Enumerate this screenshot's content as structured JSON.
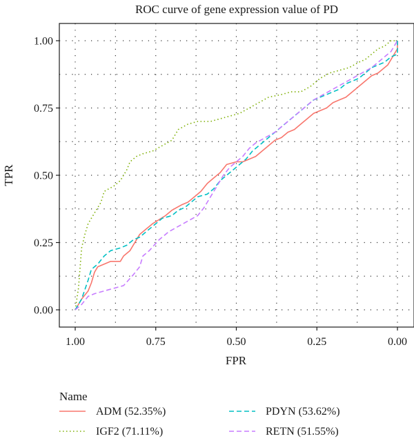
{
  "chart_data": {
    "type": "line",
    "title": "ROC curve of gene expression value of PD",
    "xlabel": "FPR",
    "ylabel": "TPR",
    "xlim": [
      1.0,
      0.0
    ],
    "ylim": [
      0.0,
      1.0
    ],
    "x_reversed": true,
    "xticks": [
      1.0,
      0.75,
      0.5,
      0.25,
      0.0
    ],
    "xtick_labels": [
      "1.00",
      "0.75",
      "0.50",
      "0.25",
      "0.00"
    ],
    "yticks": [
      0.0,
      0.25,
      0.5,
      0.75,
      1.0
    ],
    "ytick_labels": [
      "0.00",
      "0.25",
      "0.50",
      "0.75",
      "1.00"
    ],
    "grid": true,
    "legend": {
      "title": "Name",
      "position": "bottom"
    },
    "series": [
      {
        "name": "ADM (52.35%)",
        "color": "#f8766d",
        "dash": "solid",
        "points": [
          [
            1.0,
            0.0
          ],
          [
            0.99,
            0.02
          ],
          [
            0.98,
            0.04
          ],
          [
            0.96,
            0.07
          ],
          [
            0.95,
            0.1
          ],
          [
            0.94,
            0.14
          ],
          [
            0.93,
            0.16
          ],
          [
            0.91,
            0.17
          ],
          [
            0.89,
            0.18
          ],
          [
            0.86,
            0.18
          ],
          [
            0.85,
            0.2
          ],
          [
            0.83,
            0.22
          ],
          [
            0.8,
            0.28
          ],
          [
            0.78,
            0.3
          ],
          [
            0.76,
            0.32
          ],
          [
            0.72,
            0.35
          ],
          [
            0.7,
            0.37
          ],
          [
            0.67,
            0.39
          ],
          [
            0.65,
            0.4
          ],
          [
            0.63,
            0.42
          ],
          [
            0.61,
            0.44
          ],
          [
            0.59,
            0.47
          ],
          [
            0.57,
            0.49
          ],
          [
            0.55,
            0.51
          ],
          [
            0.53,
            0.54
          ],
          [
            0.5,
            0.55
          ],
          [
            0.48,
            0.55
          ],
          [
            0.46,
            0.56
          ],
          [
            0.44,
            0.57
          ],
          [
            0.42,
            0.59
          ],
          [
            0.4,
            0.61
          ],
          [
            0.38,
            0.63
          ],
          [
            0.36,
            0.64
          ],
          [
            0.34,
            0.66
          ],
          [
            0.32,
            0.67
          ],
          [
            0.3,
            0.69
          ],
          [
            0.28,
            0.71
          ],
          [
            0.26,
            0.73
          ],
          [
            0.24,
            0.74
          ],
          [
            0.22,
            0.75
          ],
          [
            0.2,
            0.77
          ],
          [
            0.18,
            0.78
          ],
          [
            0.16,
            0.79
          ],
          [
            0.14,
            0.81
          ],
          [
            0.12,
            0.83
          ],
          [
            0.1,
            0.85
          ],
          [
            0.08,
            0.87
          ],
          [
            0.06,
            0.88
          ],
          [
            0.04,
            0.9
          ],
          [
            0.03,
            0.91
          ],
          [
            0.02,
            0.93
          ],
          [
            0.01,
            0.95
          ],
          [
            0.0,
            0.97
          ],
          [
            0.0,
            1.0
          ]
        ]
      },
      {
        "name": "IGF2 (71.11%)",
        "color": "#7cae00",
        "dash": "dotted",
        "points": [
          [
            1.0,
            0.0
          ],
          [
            0.99,
            0.08
          ],
          [
            0.98,
            0.23
          ],
          [
            0.97,
            0.28
          ],
          [
            0.96,
            0.32
          ],
          [
            0.94,
            0.36
          ],
          [
            0.92,
            0.4
          ],
          [
            0.91,
            0.44
          ],
          [
            0.88,
            0.46
          ],
          [
            0.86,
            0.48
          ],
          [
            0.84,
            0.52
          ],
          [
            0.83,
            0.55
          ],
          [
            0.81,
            0.57
          ],
          [
            0.79,
            0.58
          ],
          [
            0.76,
            0.59
          ],
          [
            0.73,
            0.61
          ],
          [
            0.7,
            0.63
          ],
          [
            0.68,
            0.67
          ],
          [
            0.65,
            0.69
          ],
          [
            0.62,
            0.7
          ],
          [
            0.58,
            0.7
          ],
          [
            0.55,
            0.71
          ],
          [
            0.52,
            0.72
          ],
          [
            0.49,
            0.73
          ],
          [
            0.46,
            0.75
          ],
          [
            0.43,
            0.77
          ],
          [
            0.4,
            0.79
          ],
          [
            0.36,
            0.8
          ],
          [
            0.33,
            0.81
          ],
          [
            0.3,
            0.81
          ],
          [
            0.27,
            0.83
          ],
          [
            0.24,
            0.86
          ],
          [
            0.21,
            0.88
          ],
          [
            0.18,
            0.89
          ],
          [
            0.15,
            0.9
          ],
          [
            0.12,
            0.92
          ],
          [
            0.1,
            0.93
          ],
          [
            0.08,
            0.95
          ],
          [
            0.06,
            0.97
          ],
          [
            0.04,
            0.98
          ],
          [
            0.02,
            1.0
          ],
          [
            0.0,
            1.0
          ]
        ]
      },
      {
        "name": "PDYN (53.62%)",
        "color": "#00bfc4",
        "dash": "dashed",
        "points": [
          [
            1.0,
            0.0
          ],
          [
            0.98,
            0.04
          ],
          [
            0.96,
            0.11
          ],
          [
            0.95,
            0.15
          ],
          [
            0.93,
            0.17
          ],
          [
            0.91,
            0.2
          ],
          [
            0.89,
            0.22
          ],
          [
            0.86,
            0.23
          ],
          [
            0.84,
            0.24
          ],
          [
            0.82,
            0.26
          ],
          [
            0.8,
            0.27
          ],
          [
            0.78,
            0.29
          ],
          [
            0.76,
            0.31
          ],
          [
            0.73,
            0.34
          ],
          [
            0.7,
            0.35
          ],
          [
            0.68,
            0.37
          ],
          [
            0.66,
            0.38
          ],
          [
            0.64,
            0.4
          ],
          [
            0.62,
            0.42
          ],
          [
            0.59,
            0.43
          ],
          [
            0.57,
            0.45
          ],
          [
            0.55,
            0.48
          ],
          [
            0.53,
            0.5
          ],
          [
            0.51,
            0.52
          ],
          [
            0.49,
            0.54
          ],
          [
            0.47,
            0.56
          ],
          [
            0.45,
            0.59
          ],
          [
            0.42,
            0.62
          ],
          [
            0.4,
            0.64
          ],
          [
            0.38,
            0.66
          ],
          [
            0.36,
            0.68
          ],
          [
            0.34,
            0.7
          ],
          [
            0.32,
            0.72
          ],
          [
            0.3,
            0.74
          ],
          [
            0.28,
            0.76
          ],
          [
            0.26,
            0.78
          ],
          [
            0.24,
            0.79
          ],
          [
            0.22,
            0.8
          ],
          [
            0.2,
            0.81
          ],
          [
            0.18,
            0.82
          ],
          [
            0.16,
            0.84
          ],
          [
            0.14,
            0.85
          ],
          [
            0.12,
            0.86
          ],
          [
            0.1,
            0.88
          ],
          [
            0.08,
            0.9
          ],
          [
            0.06,
            0.91
          ],
          [
            0.04,
            0.92
          ],
          [
            0.02,
            0.94
          ],
          [
            0.0,
            0.95
          ],
          [
            0.0,
            1.0
          ]
        ]
      },
      {
        "name": "RETN (51.55%)",
        "color": "#c77cff",
        "dash": "dashed",
        "points": [
          [
            1.0,
            0.0
          ],
          [
            0.98,
            0.02
          ],
          [
            0.96,
            0.05
          ],
          [
            0.94,
            0.06
          ],
          [
            0.91,
            0.07
          ],
          [
            0.88,
            0.08
          ],
          [
            0.85,
            0.09
          ],
          [
            0.82,
            0.13
          ],
          [
            0.8,
            0.16
          ],
          [
            0.79,
            0.2
          ],
          [
            0.77,
            0.22
          ],
          [
            0.74,
            0.26
          ],
          [
            0.71,
            0.29
          ],
          [
            0.68,
            0.31
          ],
          [
            0.65,
            0.33
          ],
          [
            0.62,
            0.35
          ],
          [
            0.6,
            0.38
          ],
          [
            0.58,
            0.42
          ],
          [
            0.56,
            0.46
          ],
          [
            0.54,
            0.5
          ],
          [
            0.52,
            0.53
          ],
          [
            0.5,
            0.55
          ],
          [
            0.48,
            0.57
          ],
          [
            0.46,
            0.6
          ],
          [
            0.44,
            0.62
          ],
          [
            0.41,
            0.64
          ],
          [
            0.38,
            0.66
          ],
          [
            0.35,
            0.69
          ],
          [
            0.32,
            0.72
          ],
          [
            0.29,
            0.75
          ],
          [
            0.26,
            0.78
          ],
          [
            0.23,
            0.8
          ],
          [
            0.2,
            0.82
          ],
          [
            0.17,
            0.84
          ],
          [
            0.14,
            0.86
          ],
          [
            0.11,
            0.88
          ],
          [
            0.08,
            0.9
          ],
          [
            0.06,
            0.92
          ],
          [
            0.04,
            0.94
          ],
          [
            0.02,
            0.96
          ],
          [
            0.01,
            0.98
          ],
          [
            0.0,
            1.0
          ]
        ]
      }
    ]
  }
}
